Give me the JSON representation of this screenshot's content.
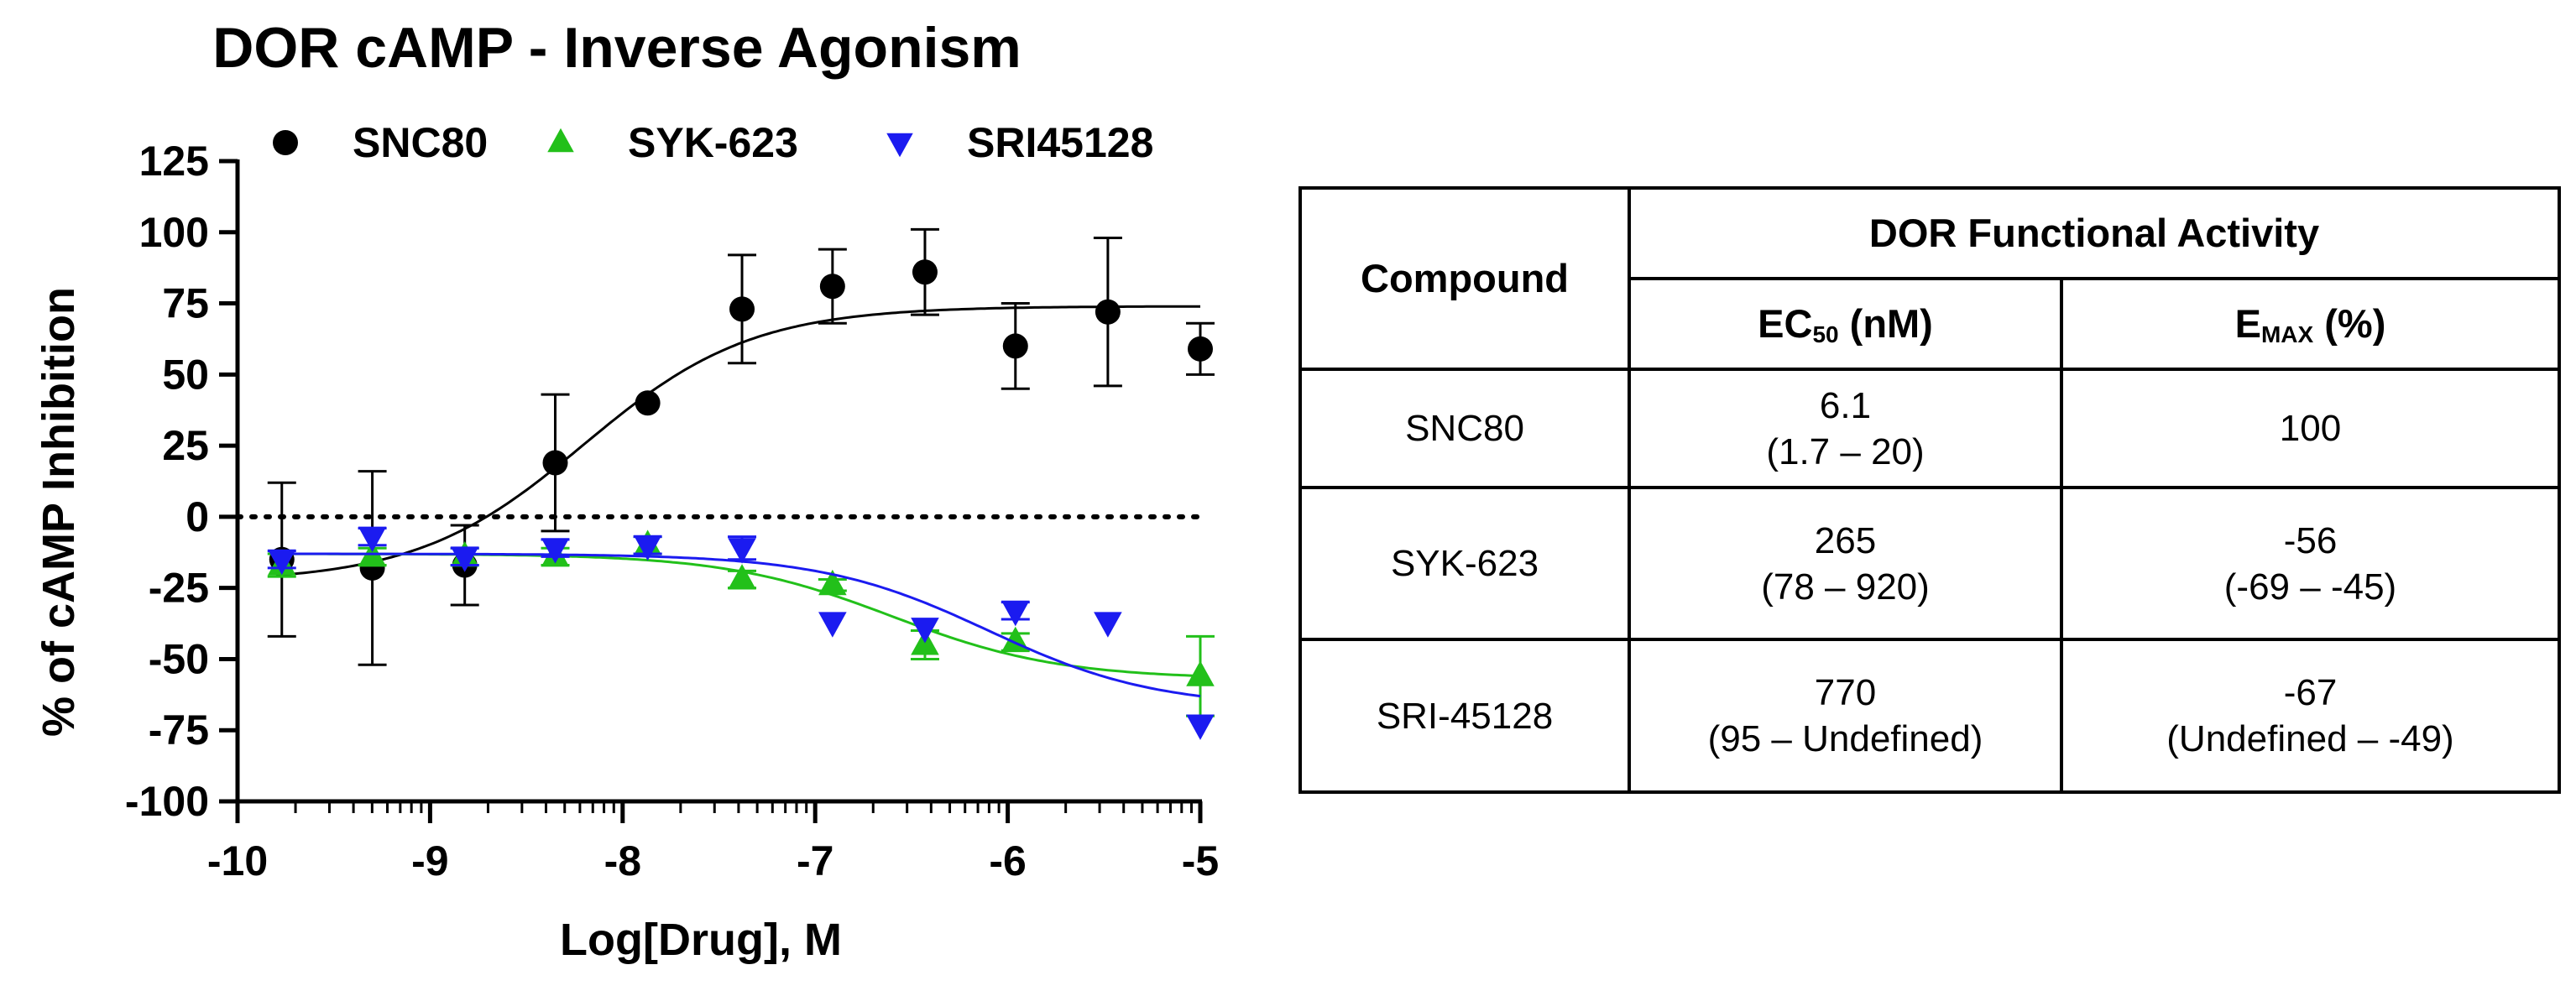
{
  "chart_data": {
    "type": "scatter",
    "title": "DOR cAMP - Inverse Agonism",
    "xlabel": "Log[Drug], M",
    "ylabel": "% of cAMP Inhibition",
    "xlim": [
      -10,
      -5
    ],
    "ylim": [
      -100,
      125
    ],
    "x_ticks": [
      -10,
      -9,
      -8,
      -7,
      -6,
      -5
    ],
    "y_ticks": [
      -100,
      -75,
      -50,
      -25,
      0,
      25,
      50,
      75,
      100,
      125
    ],
    "reference_line_y": 0,
    "legend_position": "top",
    "series": [
      {
        "name": "SNC80",
        "color": "#000000",
        "marker": "circle",
        "points": [
          {
            "x": -9.77,
            "y": -15,
            "err": 27
          },
          {
            "x": -9.3,
            "y": -18,
            "err": 34
          },
          {
            "x": -8.82,
            "y": -17,
            "err": 14
          },
          {
            "x": -8.35,
            "y": 19,
            "err": 24
          },
          {
            "x": -7.87,
            "y": 40,
            "err": 0
          },
          {
            "x": -7.38,
            "y": 73,
            "err": 19
          },
          {
            "x": -6.91,
            "y": 81,
            "err": 13
          },
          {
            "x": -6.43,
            "y": 86,
            "err": 15
          },
          {
            "x": -5.96,
            "y": 60,
            "err": 15
          },
          {
            "x": -5.48,
            "y": 72,
            "err": 26
          },
          {
            "x": -5.0,
            "y": 59,
            "err": 9
          }
        ],
        "fit": {
          "bottom": -23,
          "top": 74,
          "logEC50": -8.2,
          "hill": 1.0
        }
      },
      {
        "name": "SYK-623",
        "color": "#22c01a",
        "marker": "triangle-up",
        "points": [
          {
            "x": -9.77,
            "y": -17,
            "err": 4
          },
          {
            "x": -9.3,
            "y": -14,
            "err": 3
          },
          {
            "x": -8.82,
            "y": -14,
            "err": 3
          },
          {
            "x": -8.35,
            "y": -14,
            "err": 3
          },
          {
            "x": -7.87,
            "y": -10,
            "err": 3
          },
          {
            "x": -7.38,
            "y": -22,
            "err": 3
          },
          {
            "x": -6.91,
            "y": -24,
            "err": 2
          },
          {
            "x": -6.43,
            "y": -45,
            "err": 5
          },
          {
            "x": -5.96,
            "y": -44,
            "err": 3
          },
          {
            "x": -5.0,
            "y": -56,
            "err": 14
          }
        ],
        "fit": {
          "bottom": -13,
          "top": -57,
          "logEC50": -6.6,
          "hill": 1.0
        }
      },
      {
        "name": "SRI45128",
        "color": "#1b1bf0",
        "marker": "triangle-down",
        "points": [
          {
            "x": -9.77,
            "y": -15,
            "err": 3
          },
          {
            "x": -9.3,
            "y": -7,
            "err": 3
          },
          {
            "x": -8.82,
            "y": -14,
            "err": 3
          },
          {
            "x": -8.35,
            "y": -11,
            "err": 3
          },
          {
            "x": -7.87,
            "y": -10,
            "err": 3
          },
          {
            "x": -7.38,
            "y": -11,
            "err": 4
          },
          {
            "x": -6.91,
            "y": -37,
            "err": 0
          },
          {
            "x": -6.43,
            "y": -39,
            "err": 0
          },
          {
            "x": -5.96,
            "y": -33,
            "err": 3
          },
          {
            "x": -5.48,
            "y": -37,
            "err": 0
          },
          {
            "x": -5.0,
            "y": -73,
            "err": 0
          }
        ],
        "fit": {
          "bottom": -13,
          "top": -67,
          "logEC50": -6.1,
          "hill": 1.0
        }
      }
    ]
  },
  "table": {
    "header_compound": "Compound",
    "header_group": "DOR Functional Activity",
    "header_ec50_main": "EC",
    "header_ec50_sub": "50",
    "header_ec50_unit": " (nM)",
    "header_emax_main": "E",
    "header_emax_sub": "MAX",
    "header_emax_unit": " (%)",
    "rows": [
      {
        "compound": "SNC80",
        "ec50": "6.1",
        "ec50_ci": "(1.7 – 20)",
        "emax": "100",
        "emax_ci": ""
      },
      {
        "compound": "SYK-623",
        "ec50": "265",
        "ec50_ci": "(78 – 920)",
        "emax": "-56",
        "emax_ci": "(-69 – -45)"
      },
      {
        "compound": "SRI-45128",
        "ec50": "770",
        "ec50_ci": "(95 – Undefined)",
        "emax": "-67",
        "emax_ci": "(Undefined – -49)"
      }
    ]
  }
}
